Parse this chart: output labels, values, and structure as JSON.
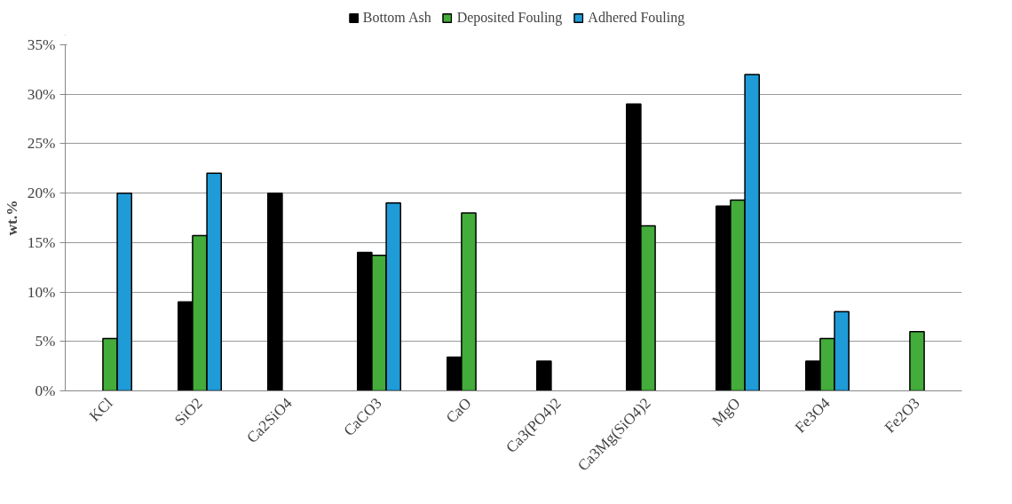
{
  "chart_data": {
    "type": "bar",
    "ylabel": "wt.%",
    "categories": [
      "KCl",
      "SiO2",
      "Ca2SiO4",
      "CaCO3",
      "CaO",
      "Ca3(PO4)2",
      "Ca3Mg(SiO4)2",
      "MgO",
      "Fe3O4",
      "Fe2O3"
    ],
    "series": [
      {
        "name": "Bottom Ash",
        "color": "#000000",
        "values": [
          null,
          9,
          20,
          14,
          3.4,
          3,
          29,
          18.7,
          3,
          null
        ]
      },
      {
        "name": "Deposited Fouling",
        "color": "#43ac3a",
        "values": [
          5.3,
          15.7,
          null,
          13.7,
          18,
          null,
          16.7,
          19.3,
          5.3,
          6
        ]
      },
      {
        "name": "Adhered Fouling",
        "color": "#1f9bd7",
        "values": [
          20,
          22,
          null,
          19,
          null,
          null,
          null,
          32,
          8,
          null
        ]
      }
    ],
    "ylim": [
      0,
      35
    ],
    "yticks": [
      {
        "value": 0,
        "label": "0%"
      },
      {
        "value": 5,
        "label": "5%"
      },
      {
        "value": 10,
        "label": "10%"
      },
      {
        "value": 15,
        "label": "15%"
      },
      {
        "value": 20,
        "label": "20%"
      },
      {
        "value": 25,
        "label": "25%"
      },
      {
        "value": 30,
        "label": "30%"
      },
      {
        "value": 35,
        "label": "35%"
      }
    ],
    "grid": "y",
    "legend": "top"
  }
}
